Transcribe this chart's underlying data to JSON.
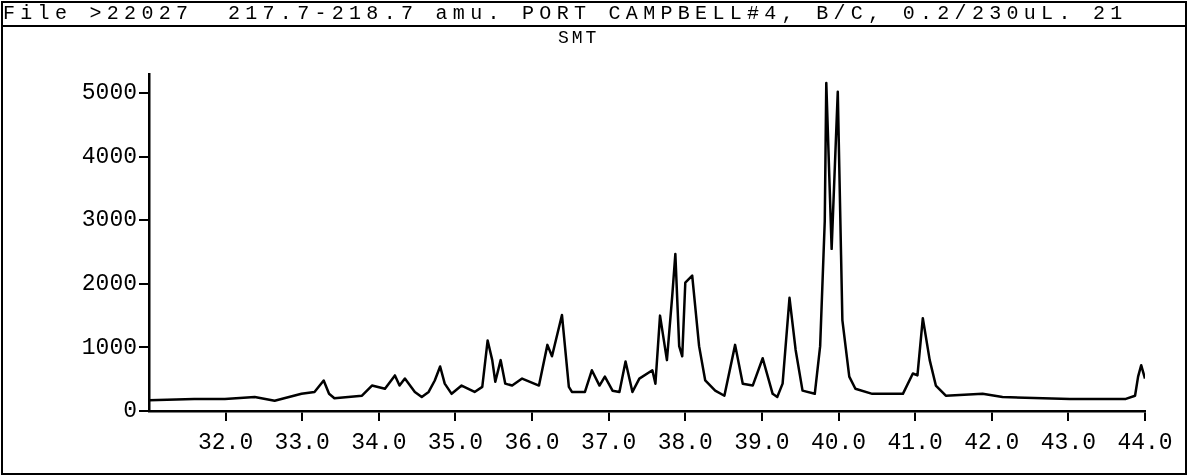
{
  "chart_data": {
    "type": "line",
    "title": "File >22027  217.7-218.7 amu. PORT CAMPBELL#4, B/C, 0.2/230uL. 21",
    "subtitle": "SMT",
    "x": [
      31.0,
      31.59,
      31.99,
      32.38,
      32.64,
      32.99,
      33.16,
      33.28,
      33.35,
      33.42,
      33.78,
      33.91,
      34.08,
      34.21,
      34.27,
      34.34,
      34.47,
      34.56,
      34.65,
      34.73,
      34.8,
      34.86,
      34.95,
      35.08,
      35.25,
      35.35,
      35.42,
      35.48,
      35.52,
      35.59,
      35.65,
      35.74,
      35.87,
      36.09,
      36.2,
      36.26,
      36.39,
      36.48,
      36.52,
      36.69,
      36.78,
      36.88,
      36.95,
      37.05,
      37.14,
      37.22,
      37.31,
      37.4,
      37.57,
      37.61,
      37.67,
      37.76,
      37.83,
      37.87,
      37.92,
      37.96,
      38.0,
      38.09,
      38.18,
      38.26,
      38.39,
      38.51,
      38.65,
      38.75,
      38.88,
      39.01,
      39.14,
      39.2,
      39.27,
      39.36,
      39.44,
      39.53,
      39.69,
      39.76,
      39.82,
      39.84,
      39.91,
      39.99,
      40.05,
      40.14,
      40.22,
      40.44,
      40.84,
      40.97,
      41.03,
      41.1,
      41.19,
      41.27,
      41.4,
      41.88,
      42.14,
      43.02,
      43.75,
      43.87,
      43.91,
      43.95,
      44.0
    ],
    "series": [
      {
        "color": "#000000",
        "values": [
          170,
          190,
          190,
          220,
          160,
          270,
          300,
          480,
          270,
          200,
          240,
          400,
          350,
          560,
          400,
          510,
          300,
          220,
          300,
          480,
          700,
          430,
          270,
          400,
          300,
          380,
          1110,
          800,
          460,
          800,
          430,
          400,
          510,
          400,
          1040,
          860,
          1510,
          380,
          300,
          300,
          640,
          400,
          540,
          320,
          300,
          780,
          300,
          510,
          640,
          430,
          1500,
          800,
          1820,
          2470,
          1020,
          860,
          2020,
          2130,
          1020,
          480,
          320,
          240,
          1040,
          430,
          400,
          830,
          270,
          220,
          430,
          1780,
          960,
          320,
          270,
          1020,
          2980,
          5160,
          2550,
          5020,
          1430,
          540,
          350,
          270,
          270,
          590,
          560,
          1460,
          800,
          400,
          240,
          270,
          220,
          190,
          190,
          240,
          540,
          720,
          510
        ]
      }
    ],
    "xlim": [
      31,
      44
    ],
    "ylim": [
      0,
      5300
    ],
    "xticks": [
      {
        "value": 32,
        "label": "32.0"
      },
      {
        "value": 33,
        "label": "33.0"
      },
      {
        "value": 34,
        "label": "34.0"
      },
      {
        "value": 35,
        "label": "35.0"
      },
      {
        "value": 36,
        "label": "36.0"
      },
      {
        "value": 37,
        "label": "37.0"
      },
      {
        "value": 38,
        "label": "38.0"
      },
      {
        "value": 39,
        "label": "39.0"
      },
      {
        "value": 40,
        "label": "40.0"
      },
      {
        "value": 41,
        "label": "41.0"
      },
      {
        "value": 42,
        "label": "42.0"
      },
      {
        "value": 43,
        "label": "43.0"
      },
      {
        "value": 44,
        "label": "44.0"
      }
    ],
    "yticks": [
      0,
      1000,
      2000,
      3000,
      4000,
      5000
    ],
    "grid": false,
    "legend": false,
    "marker": "none",
    "line_style": "solid"
  }
}
